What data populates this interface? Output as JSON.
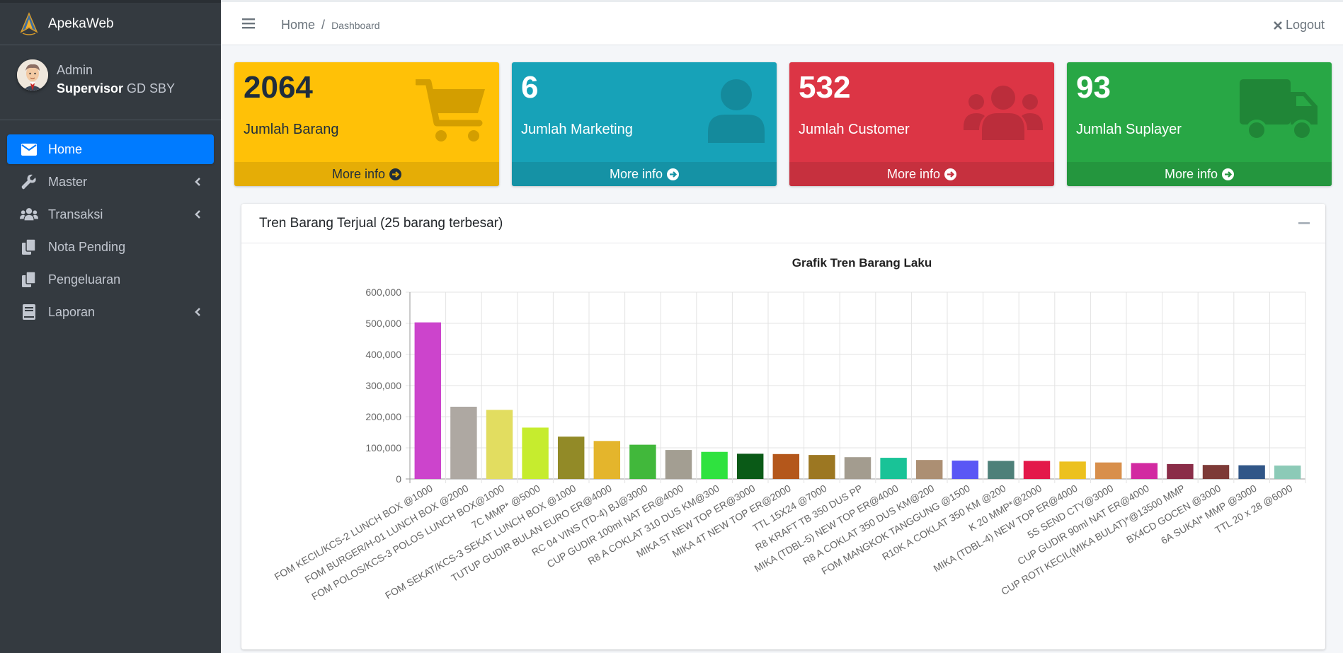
{
  "app": {
    "brand": "ApekaWeb"
  },
  "user": {
    "name": "Admin",
    "role_bold": "Supervisor",
    "role_rest": " GD SBY"
  },
  "sidebar": {
    "items": [
      {
        "label": "Home",
        "icon": "envelope-icon",
        "active": true,
        "has_arrow": false
      },
      {
        "label": "Master",
        "icon": "wrench-icon",
        "active": false,
        "has_arrow": true
      },
      {
        "label": "Transaksi",
        "icon": "users-icon",
        "active": false,
        "has_arrow": true
      },
      {
        "label": "Nota Pending",
        "icon": "copy-icon",
        "active": false,
        "has_arrow": false
      },
      {
        "label": "Pengeluaran",
        "icon": "copy-icon",
        "active": false,
        "has_arrow": false
      },
      {
        "label": "Laporan",
        "icon": "book-icon",
        "active": false,
        "has_arrow": true
      }
    ]
  },
  "header": {
    "breadcrumb_home": "Home",
    "breadcrumb_sep": "/",
    "breadcrumb_current": "Dashboard",
    "logout": "Logout"
  },
  "boxes": [
    {
      "number": "2064",
      "label": "Jumlah Barang",
      "footer": "More info",
      "color": "#ffc107",
      "icon": "shopping-cart-icon"
    },
    {
      "number": "6",
      "label": "Jumlah Marketing",
      "footer": "More info",
      "color": "#17a2b8",
      "icon": "user-icon"
    },
    {
      "number": "532",
      "label": "Jumlah Customer",
      "footer": "More info",
      "color": "#dc3545",
      "icon": "users-icon"
    },
    {
      "number": "93",
      "label": "Jumlah Suplayer",
      "footer": "More info",
      "color": "#28a745",
      "icon": "truck-icon"
    }
  ],
  "card": {
    "title": "Tren Barang Terjual (25 barang terbesar)"
  },
  "chart_data": {
    "type": "bar",
    "title": "Grafik Tren Barang Laku",
    "xlabel": "",
    "ylabel": "",
    "ylim": [
      0,
      600000
    ],
    "yticks": [
      "0",
      "100,000",
      "200,000",
      "300,000",
      "400,000",
      "500,000",
      "600,000"
    ],
    "grid": true,
    "legend": "none",
    "categories": [
      "FOM KECIL/KCS-2 LUNCH BOX @1000",
      "FOM BURGER/H-01 LUNCH BOX  @2000",
      "FOM POLOS/KCS-3 POLOS LUNCH BOX@1000",
      "7C MMP* @5000",
      "FOM SEKAT/KCS-3 SEKAT LUNCH BOX @1000",
      "TUTUP GUDIR BULAN EURO ER@4000",
      "RC 04 VINS (TD-4) BJ@3000",
      "CUP GUDIR 100ml NAT ER@4000",
      "R8 A COKLAT 310 DUS KM@300",
      "MIKA 5T NEW TOP ER@3000",
      "MIKA 4T NEW TOP ER@2000",
      "TTL 15X24  @7000",
      "R8 KRAFT TB 350 DUS PP",
      "MIKA (TDBL-5) NEW TOP ER@4000",
      "R8 A COKLAT 350 DUS KM@200",
      "FOM MANGKOK TANGGUNG  @1500",
      "R10K A COKLAT 350 KM @200",
      "K 20 MMP*@2000",
      "MIKA (TDBL-4) NEW TOP ER@4000",
      "5S SEND CTY@3000",
      "CUP GUDIR 90ml NAT ER@4000",
      "CUP ROTI KECIL(MIKA BULAT)*@13500 MMP",
      "BX4CD GOCEN  @3000",
      "6A SUKAI* MMP @3000",
      "TTL 20 x 28 @6000"
    ],
    "values": [
      503000,
      232000,
      222000,
      165000,
      136000,
      122000,
      110000,
      93000,
      87000,
      81000,
      80000,
      77000,
      70000,
      68000,
      61000,
      59000,
      58000,
      58000,
      56000,
      53000,
      51000,
      48000,
      45000,
      44000,
      43000
    ],
    "colors": [
      "#cc44cc",
      "#aea8a2",
      "#e2dd60",
      "#c6ec2e",
      "#928a27",
      "#e4b52c",
      "#41b83b",
      "#a39e92",
      "#2fe23f",
      "#0a5a17",
      "#b4571b",
      "#9c7722",
      "#a39c8f",
      "#19c397",
      "#ac8f73",
      "#5a57f5",
      "#4e8079",
      "#e3194a",
      "#ecc11f",
      "#d88f4b",
      "#d22aa1",
      "#8a2d48",
      "#7d3a37",
      "#315687",
      "#8ccab7"
    ]
  }
}
